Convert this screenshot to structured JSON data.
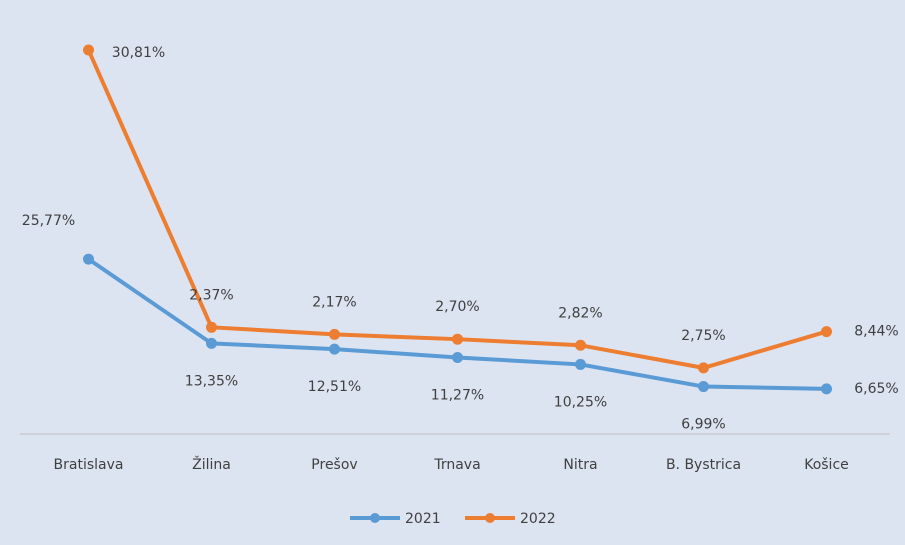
{
  "chart_data": {
    "type": "line",
    "stacked": true,
    "categories": [
      "Bratislava",
      "Žilina",
      "Prešov",
      "Trnava",
      "Nitra",
      "B. Bystrica",
      "Košice"
    ],
    "series": [
      {
        "name": "2021",
        "color": "#5b9bd5",
        "values": [
          25.77,
          13.35,
          12.51,
          11.27,
          10.25,
          6.99,
          6.65
        ],
        "value_labels": [
          "25,77%",
          "13,35%",
          "12,51%",
          "11,27%",
          "10,25%",
          "6,99%",
          "6,65%"
        ]
      },
      {
        "name": "2022",
        "color": "#ed7d31",
        "values": [
          30.81,
          2.37,
          2.17,
          2.7,
          2.82,
          2.75,
          8.44
        ],
        "value_labels": [
          "30,81%",
          "2,37%",
          "2,17%",
          "2,70%",
          "2,82%",
          "2,75%",
          "8,44%"
        ]
      }
    ],
    "legend": "bottom"
  }
}
